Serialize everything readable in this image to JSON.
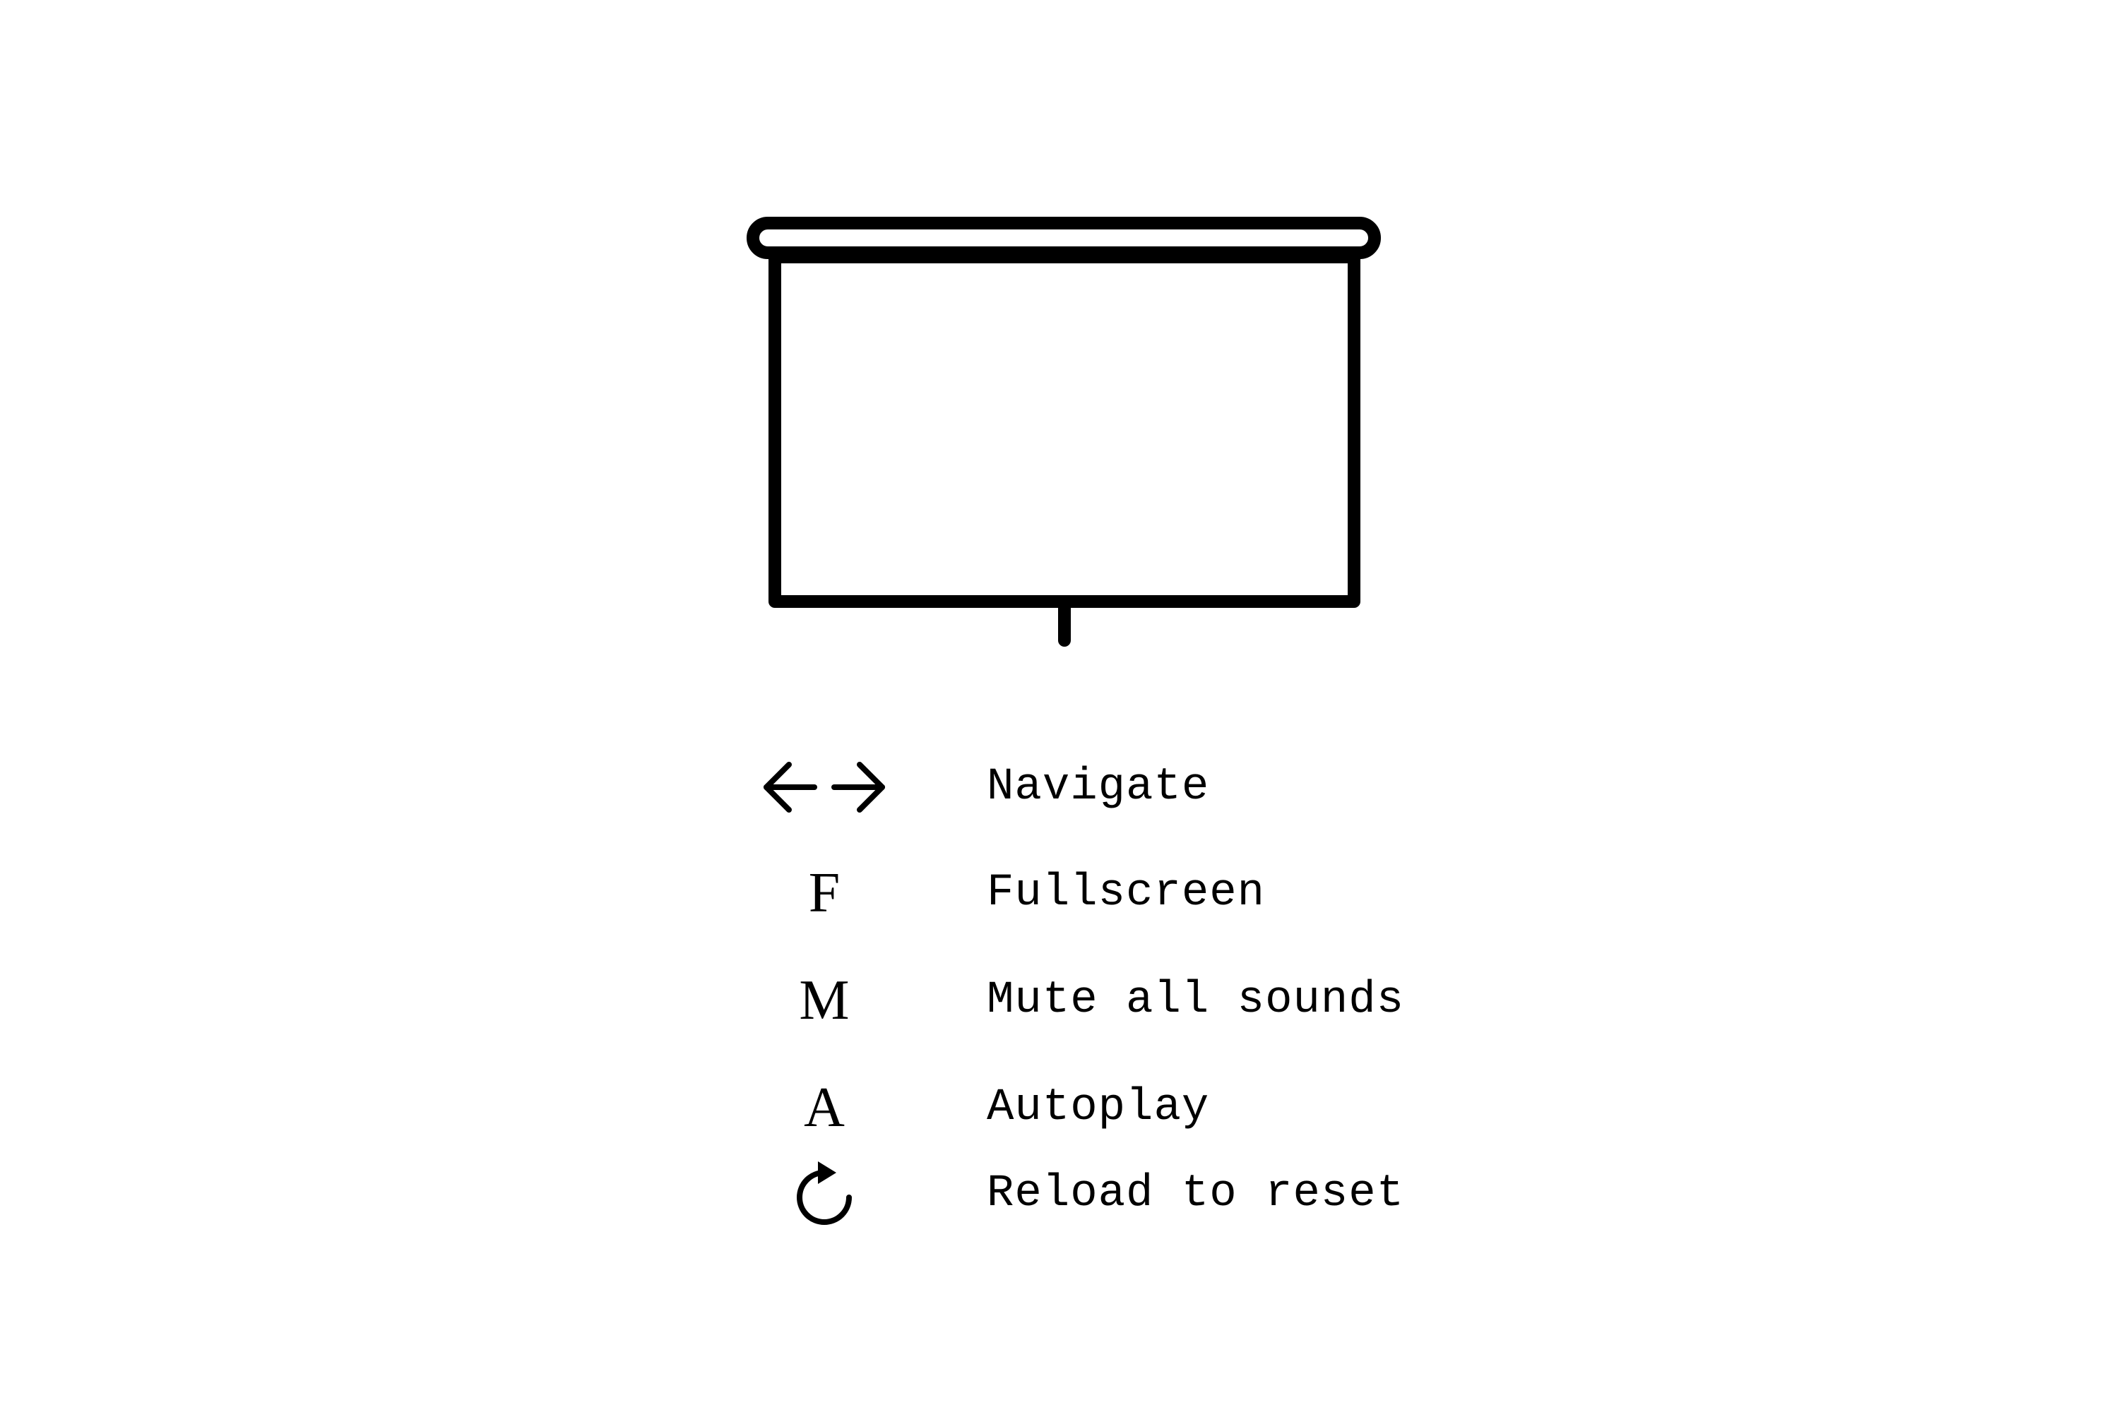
{
  "icon": "projector-screen-icon",
  "colors": {
    "background": "#ffffff",
    "foreground": "#000000"
  },
  "shortcuts": [
    {
      "key_icon": "left-right-arrows-icon",
      "label": "Navigate"
    },
    {
      "key": "F",
      "label": "Fullscreen"
    },
    {
      "key": "M",
      "label": "Mute all sounds"
    },
    {
      "key": "A",
      "label": "Autoplay"
    },
    {
      "key_icon": "reload-icon",
      "label": "Reload to reset"
    }
  ]
}
